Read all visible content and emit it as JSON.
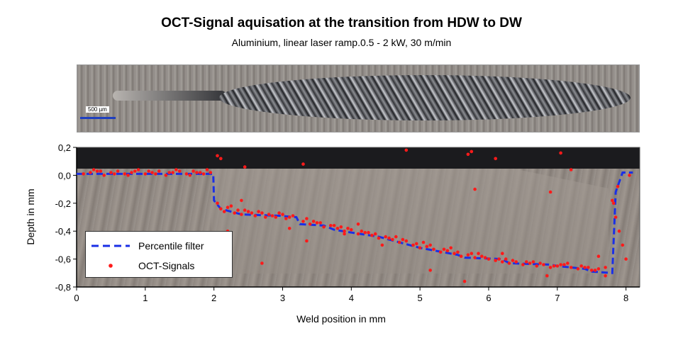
{
  "chart_data": {
    "type": "scatter",
    "title": "OCT-Signal aquisation at the transition from HDW to DW",
    "subtitle": "Aluminium, linear laser ramp.0.5 - 2 kW, 30 m/min",
    "xlabel": "Weld position in mm",
    "ylabel": "Depth in mm",
    "xlim": [
      0,
      8.2
    ],
    "ylim": [
      -0.8,
      0.2
    ],
    "xticks": [
      "0",
      "1",
      "2",
      "3",
      "4",
      "5",
      "6",
      "7",
      "8"
    ],
    "yticks": [
      "0,2",
      "0,0",
      "-0,2",
      "-0,4",
      "-0,6",
      "-0,8"
    ],
    "grid": false,
    "legend_position": "bottom-left",
    "image_scale_label": "500 µm",
    "series": [
      {
        "name": "Percentile filter",
        "style": "dashed-line",
        "color": "#1a2fe6",
        "x": [
          0,
          1.99,
          2.0,
          2.1,
          2.4,
          2.95,
          3.2,
          3.25,
          3.6,
          3.75,
          4.0,
          4.4,
          5.0,
          5.55,
          5.65,
          6.2,
          6.3,
          6.9,
          7.0,
          7.4,
          7.5,
          7.8,
          7.85,
          7.95,
          8.1
        ],
        "y": [
          0.01,
          0.01,
          -0.18,
          -0.24,
          -0.28,
          -0.29,
          -0.3,
          -0.35,
          -0.36,
          -0.39,
          -0.41,
          -0.44,
          -0.52,
          -0.57,
          -0.59,
          -0.6,
          -0.63,
          -0.64,
          -0.65,
          -0.67,
          -0.69,
          -0.7,
          -0.12,
          0.02,
          0.02
        ]
      },
      {
        "name": "OCT-Signals",
        "style": "markers",
        "color": "#ff1a1a",
        "x": [
          0.1,
          0.2,
          0.3,
          0.4,
          0.5,
          0.6,
          0.7,
          0.8,
          0.9,
          1.0,
          1.1,
          1.2,
          1.3,
          1.4,
          1.5,
          1.6,
          1.7,
          1.8,
          1.9,
          1.95,
          0.35,
          0.75,
          1.15,
          1.45,
          1.75,
          0.55,
          1.05,
          1.65,
          0.25,
          0.85,
          1.35,
          1.85,
          2.05,
          2.1,
          2.15,
          2.2,
          2.3,
          2.35,
          2.4,
          2.5,
          2.6,
          2.7,
          2.8,
          2.9,
          3.0,
          3.1,
          3.15,
          2.25,
          2.55,
          2.75,
          2.95,
          3.05,
          2.45,
          2.65,
          2.85,
          3.3,
          3.4,
          3.5,
          3.6,
          3.7,
          3.8,
          3.9,
          4.0,
          4.1,
          4.2,
          4.3,
          4.4,
          4.5,
          4.6,
          4.7,
          4.8,
          4.9,
          5.0,
          5.1,
          5.2,
          5.3,
          5.4,
          5.5,
          5.6,
          5.7,
          5.8,
          5.9,
          6.0,
          6.1,
          6.2,
          6.3,
          6.4,
          6.5,
          6.6,
          6.7,
          6.8,
          6.9,
          7.0,
          7.1,
          7.2,
          7.3,
          7.4,
          7.5,
          7.6,
          7.7,
          3.35,
          3.55,
          3.75,
          3.95,
          4.15,
          4.35,
          4.55,
          4.75,
          4.95,
          5.15,
          5.35,
          5.55,
          5.75,
          5.95,
          6.15,
          6.35,
          6.55,
          6.75,
          6.95,
          7.15,
          7.35,
          7.55,
          3.45,
          3.85,
          4.25,
          4.65,
          5.05,
          5.45,
          5.85,
          6.25,
          6.65,
          7.05,
          7.45,
          2.05,
          2.1,
          2.45,
          3.3,
          4.8,
          5.7,
          5.75,
          6.1,
          6.9,
          7.05,
          7.2,
          7.8,
          7.85,
          7.9,
          7.95,
          8.0,
          8.05,
          7.82,
          7.88,
          2.2,
          2.7,
          3.35,
          3.9,
          4.45,
          5.15,
          5.65,
          6.2,
          6.85,
          7.7,
          7.6,
          4.1,
          5.8,
          2.4,
          3.1
        ],
        "y": [
          0.01,
          0.02,
          0.03,
          0.0,
          0.02,
          0.03,
          0.01,
          0.02,
          0.04,
          0.01,
          0.02,
          0.03,
          0.0,
          0.02,
          0.03,
          0.01,
          0.03,
          0.02,
          0.04,
          0.02,
          0.03,
          0.0,
          0.01,
          0.04,
          0.02,
          0.01,
          0.03,
          0.0,
          0.04,
          0.03,
          0.02,
          0.01,
          -0.2,
          -0.24,
          -0.26,
          -0.23,
          -0.27,
          -0.25,
          -0.28,
          -0.26,
          -0.29,
          -0.27,
          -0.28,
          -0.3,
          -0.28,
          -0.3,
          -0.29,
          -0.22,
          -0.27,
          -0.3,
          -0.27,
          -0.31,
          -0.25,
          -0.26,
          -0.29,
          -0.33,
          -0.35,
          -0.34,
          -0.37,
          -0.36,
          -0.38,
          -0.4,
          -0.39,
          -0.42,
          -0.41,
          -0.43,
          -0.45,
          -0.44,
          -0.46,
          -0.48,
          -0.47,
          -0.5,
          -0.52,
          -0.51,
          -0.53,
          -0.55,
          -0.54,
          -0.56,
          -0.58,
          -0.57,
          -0.59,
          -0.58,
          -0.6,
          -0.61,
          -0.62,
          -0.63,
          -0.62,
          -0.64,
          -0.63,
          -0.65,
          -0.64,
          -0.66,
          -0.65,
          -0.64,
          -0.66,
          -0.67,
          -0.66,
          -0.68,
          -0.67,
          -0.66,
          -0.31,
          -0.34,
          -0.36,
          -0.38,
          -0.4,
          -0.42,
          -0.45,
          -0.46,
          -0.49,
          -0.5,
          -0.53,
          -0.55,
          -0.56,
          -0.59,
          -0.6,
          -0.61,
          -0.62,
          -0.63,
          -0.65,
          -0.63,
          -0.65,
          -0.68,
          -0.33,
          -0.37,
          -0.41,
          -0.44,
          -0.48,
          -0.52,
          -0.56,
          -0.6,
          -0.62,
          -0.64,
          -0.66,
          0.14,
          0.12,
          0.06,
          0.08,
          0.18,
          0.15,
          0.17,
          0.12,
          -0.12,
          0.16,
          0.04,
          -0.18,
          -0.3,
          -0.4,
          -0.5,
          -0.6,
          0.0,
          -0.2,
          -0.08,
          -0.4,
          -0.63,
          -0.47,
          -0.42,
          -0.5,
          -0.68,
          -0.76,
          -0.56,
          -0.72,
          -0.72,
          -0.58,
          -0.35,
          -0.1,
          -0.18,
          -0.38
        ]
      }
    ]
  }
}
